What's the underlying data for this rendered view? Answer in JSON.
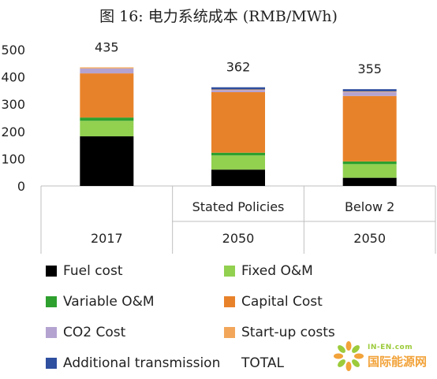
{
  "chart_data": {
    "type": "bar",
    "stacked": true,
    "title": "图 16: 电力系统成本 (RMB/MWh)",
    "ylim": [
      0,
      500
    ],
    "yticks": [
      0,
      100,
      200,
      300,
      400,
      500
    ],
    "grid": false,
    "categories": [
      {
        "scenario": "",
        "year": "2017"
      },
      {
        "scenario": "Stated Policies",
        "year": "2050"
      },
      {
        "scenario": "Below 2",
        "year": "2050"
      }
    ],
    "series": [
      {
        "name": "Fuel cost",
        "color": "#000000",
        "values": [
          182,
          60,
          30
        ]
      },
      {
        "name": "Fixed O&M",
        "color": "#92d050",
        "values": [
          57,
          52,
          50
        ]
      },
      {
        "name": "Variable O&M",
        "color": "#2ea02e",
        "values": [
          12,
          10,
          10
        ]
      },
      {
        "name": "Capital Cost",
        "color": "#e8822a",
        "values": [
          162,
          222,
          240
        ]
      },
      {
        "name": "CO2 Cost",
        "color": "#b4a3d1",
        "values": [
          18,
          8,
          15
        ]
      },
      {
        "name": "Start-up costs",
        "color": "#f2a65a",
        "values": [
          4,
          2,
          2
        ]
      },
      {
        "name": "Additional transmission",
        "color": "#2f4f9f",
        "values": [
          0,
          8,
          8
        ]
      }
    ],
    "totals": {
      "name": "TOTAL",
      "values": [
        435,
        362,
        355
      ]
    },
    "legend": [
      {
        "label": "Fuel cost",
        "color": "#000000"
      },
      {
        "label": "Fixed O&M",
        "color": "#92d050"
      },
      {
        "label": "Variable O&M",
        "color": "#2ea02e"
      },
      {
        "label": "Capital Cost",
        "color": "#e8822a"
      },
      {
        "label": "CO2 Cost",
        "color": "#b4a3d1"
      },
      {
        "label": "Start-up costs",
        "color": "#f2a65a"
      },
      {
        "label": "Additional transmission",
        "color": "#2f4f9f"
      },
      {
        "label": "TOTAL",
        "color": ""
      }
    ],
    "legend_placement": "bottom"
  },
  "watermark": {
    "top_text": "IN-EN.com",
    "main_text": "国际能源网",
    "icon": "sunflower-logo-icon"
  }
}
